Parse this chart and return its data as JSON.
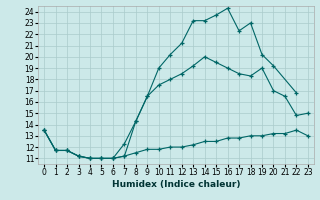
{
  "xlabel": "Humidex (Indice chaleur)",
  "background_color": "#cce9e9",
  "grid_color": "#aacccc",
  "line_color": "#006666",
  "xlim": [
    -0.5,
    23.5
  ],
  "ylim": [
    10.5,
    24.5
  ],
  "xticks": [
    0,
    1,
    2,
    3,
    4,
    5,
    6,
    7,
    8,
    9,
    10,
    11,
    12,
    13,
    14,
    15,
    16,
    17,
    18,
    19,
    20,
    21,
    22,
    23
  ],
  "yticks": [
    11,
    12,
    13,
    14,
    15,
    16,
    17,
    18,
    19,
    20,
    21,
    22,
    23,
    24
  ],
  "s1_x": [
    0,
    1,
    2,
    3,
    4,
    5,
    6,
    7,
    8,
    9,
    10,
    11,
    12,
    13,
    14,
    15,
    16,
    17,
    18,
    19,
    20,
    22
  ],
  "s1_y": [
    13.5,
    11.7,
    11.7,
    11.2,
    11.0,
    11.0,
    11.0,
    11.2,
    14.3,
    16.5,
    19.0,
    20.2,
    21.2,
    23.2,
    23.2,
    23.7,
    24.3,
    22.3,
    23.0,
    20.2,
    19.2,
    16.8
  ],
  "s2_x": [
    0,
    1,
    2,
    3,
    4,
    5,
    6,
    7,
    8,
    9,
    10,
    11,
    12,
    13,
    14,
    15,
    16,
    17,
    18,
    19,
    20,
    21,
    22,
    23
  ],
  "s2_y": [
    13.5,
    11.7,
    11.7,
    11.2,
    11.0,
    11.0,
    11.0,
    12.3,
    14.3,
    16.5,
    17.5,
    18.0,
    18.5,
    19.2,
    20.0,
    19.5,
    19.0,
    18.5,
    18.3,
    19.0,
    17.0,
    16.5,
    14.8,
    15.0
  ],
  "s3_x": [
    0,
    1,
    2,
    3,
    4,
    5,
    6,
    7,
    8,
    9,
    10,
    11,
    12,
    13,
    14,
    15,
    16,
    17,
    18,
    19,
    20,
    21,
    22,
    23
  ],
  "s3_y": [
    13.5,
    11.7,
    11.7,
    11.2,
    11.0,
    11.0,
    11.0,
    11.2,
    11.5,
    11.8,
    11.8,
    12.0,
    12.0,
    12.2,
    12.5,
    12.5,
    12.8,
    12.8,
    13.0,
    13.0,
    13.2,
    13.2,
    13.5,
    13.0
  ]
}
